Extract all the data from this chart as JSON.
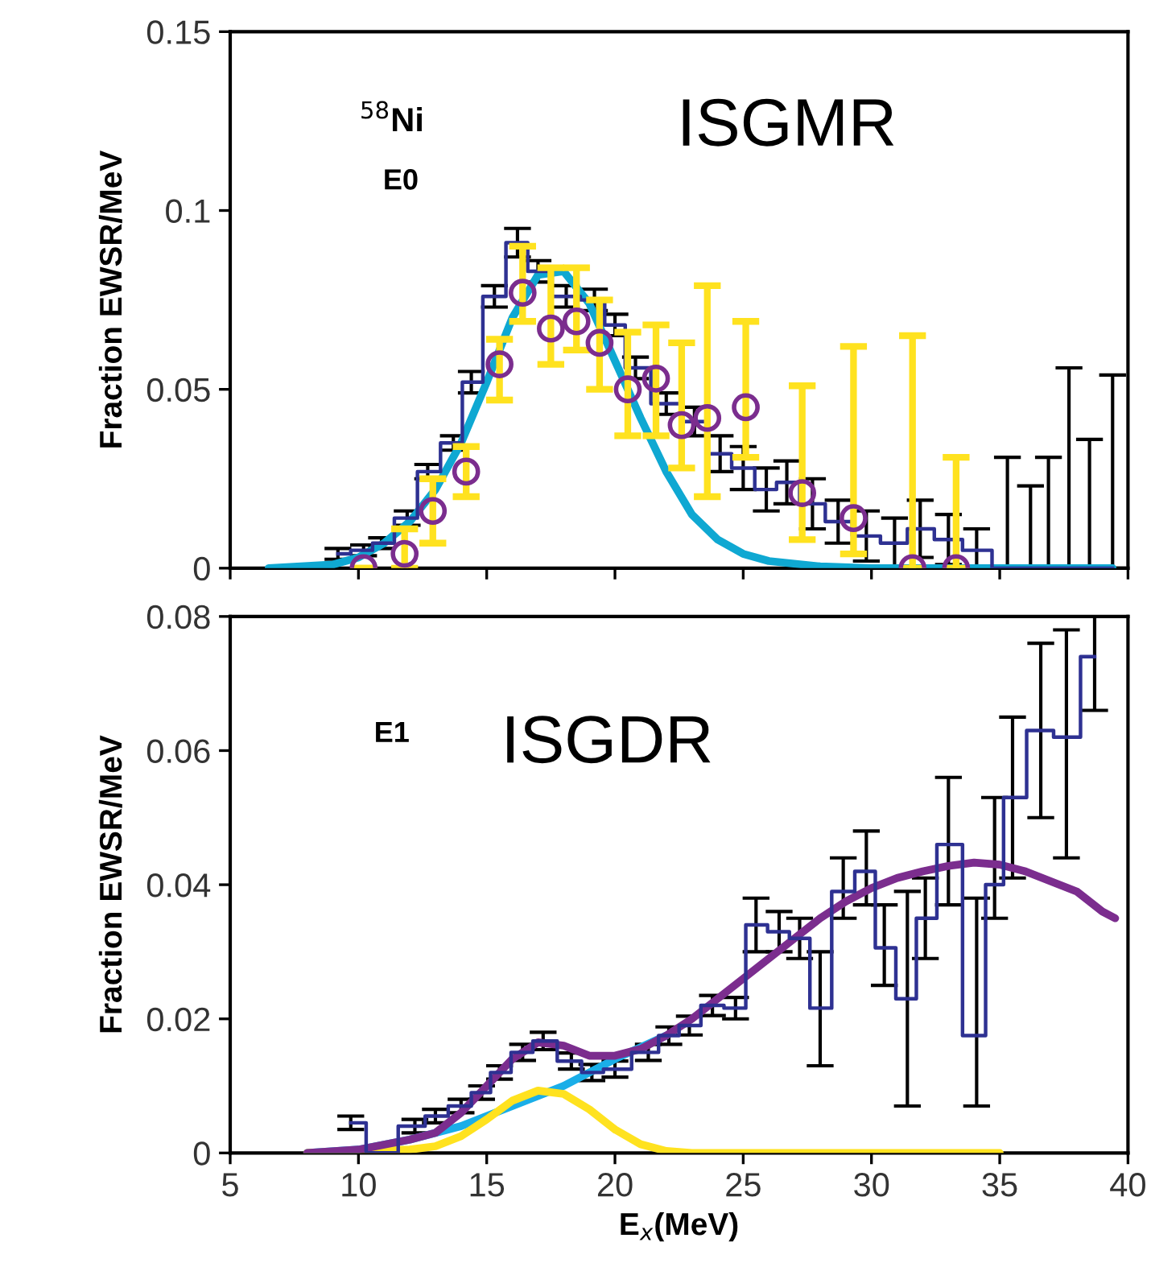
{
  "chart_data": [
    {
      "type": "step",
      "ylabel": "Fraction EWSR/MeV",
      "xlim": [
        5,
        40
      ],
      "ylim": [
        0,
        0.15
      ],
      "xticks": [
        5,
        10,
        15,
        20,
        25,
        30,
        35,
        40
      ],
      "yticks": [
        0,
        {
          "value": 0.05,
          "label": "0.05"
        },
        {
          "value": 0.1,
          "label": "0.1"
        },
        {
          "value": 0.15,
          "label": "0.15"
        }
      ],
      "tick_labels": "y",
      "grid": false,
      "legend": false,
      "annotations": [
        "$^{58}$Ni",
        "E0",
        "ISGMR"
      ],
      "series": [
        {
          "color": "#2e3192",
          "x": [
            9.2,
            10.2,
            10.9,
            11.9,
            12.7,
            13.7,
            14.4,
            15.3,
            16.2,
            17.0,
            18.1,
            19.2,
            20.0,
            20.8,
            22.0,
            23.1,
            24.1,
            25.0,
            25.9,
            26.7,
            27.7,
            28.7,
            29.8,
            30.9,
            31.9,
            33.0,
            34.1,
            35.3,
            36.2,
            36.9,
            37.7,
            38.5,
            39.4
          ],
          "values": [
            0.004,
            0.005,
            0.007,
            0.014,
            0.027,
            0.035,
            0.052,
            0.076,
            0.091,
            0.083,
            0.076,
            0.075,
            0.068,
            0.056,
            0.046,
            0.041,
            0.032,
            0.028,
            0.022,
            0.024,
            0.018,
            0.013,
            0.009,
            0.007,
            0.011,
            0.008,
            0.005,
            0,
            0,
            0,
            0,
            0,
            0
          ],
          "errors": [
            0.0015,
            0.0015,
            0.0015,
            0.002,
            0.002,
            0.002,
            0.003,
            0.003,
            0.004,
            0.003,
            0.003,
            0.003,
            0.003,
            0.003,
            0.003,
            0.004,
            0.005,
            0.006,
            0.006,
            0.006,
            0.007,
            0.006,
            0.007,
            0.007,
            0.008,
            0.007,
            0.006,
            [
              0,
              0.031
            ],
            [
              0,
              0.023
            ],
            [
              0,
              0.031
            ],
            [
              0,
              0.056
            ],
            [
              0,
              0.036
            ],
            [
              0,
              0.054
            ]
          ]
        },
        {
          "type": "line",
          "color": "#0fa8d2",
          "x": [
            6.5,
            9,
            10,
            11,
            12,
            13,
            14,
            15,
            16,
            17,
            18,
            19,
            20,
            21,
            22,
            23,
            24,
            25,
            26,
            28,
            30,
            39.4
          ],
          "values": [
            0,
            0.001,
            0.003,
            0.007,
            0.013,
            0.022,
            0.035,
            0.052,
            0.07,
            0.082,
            0.083,
            0.074,
            0.058,
            0.042,
            0.027,
            0.015,
            0.008,
            0.004,
            0.002,
            0.0005,
            0,
            0
          ]
        },
        {
          "type": "scatter",
          "marker": "circle",
          "color": "#7b2d8e",
          "x": [
            10.2,
            11.8,
            12.9,
            14.2,
            15.5,
            16.4,
            17.5,
            18.5,
            19.4,
            20.5,
            21.6,
            22.6,
            23.6,
            25.1,
            27.3,
            29.3,
            31.6,
            33.3
          ],
          "values": [
            0,
            0.004,
            0.016,
            0.027,
            0.057,
            0.077,
            0.067,
            0.069,
            0.063,
            0.05,
            0.053,
            0.04,
            0.042,
            0.045,
            0.021,
            0.014,
            0,
            0
          ],
          "errors": [
            null,
            [
              0,
              0.011
            ],
            [
              0.007,
              0.025
            ],
            [
              0.02,
              0.034
            ],
            [
              0.047,
              0.064
            ],
            [
              0.069,
              0.09
            ],
            [
              0.057,
              0.084
            ],
            [
              0.061,
              0.084
            ],
            [
              0.05,
              0.075
            ],
            [
              0.037,
              0.066
            ],
            [
              0.037,
              0.068
            ],
            [
              0.028,
              0.063
            ],
            [
              0.02,
              0.079
            ],
            [
              0.031,
              0.069
            ],
            [
              0.008,
              0.051
            ],
            [
              0.004,
              0.062
            ],
            [
              0,
              0.065
            ],
            [
              0,
              0.031
            ]
          ]
        }
      ]
    },
    {
      "type": "step",
      "ylabel": "Fraction EWSR/MeV",
      "xlabel": "E$_{x}$(MeV)",
      "xlim": [
        5,
        40
      ],
      "ylim": [
        0,
        0.08
      ],
      "xticks": [
        5,
        10,
        15,
        20,
        25,
        30,
        35,
        40
      ],
      "yticks": [
        0,
        {
          "value": 0.02,
          "label": "0.02"
        },
        {
          "value": 0.04,
          "label": "0.04"
        },
        {
          "value": 0.06,
          "label": "0.06"
        },
        {
          "value": 0.08,
          "label": "0.08"
        }
      ],
      "grid": false,
      "legend": false,
      "annotations": [
        "E1",
        "ISGDR"
      ],
      "series": [
        {
          "color": "#2e3192",
          "x": [
            9.7,
            10.9,
            12.2,
            13.0,
            14.0,
            14.8,
            15.5,
            16.4,
            17.2,
            18.3,
            19.1,
            20.0,
            21.3,
            22.1,
            22.9,
            23.8,
            24.7,
            25.5,
            26.4,
            27.2,
            28.0,
            28.9,
            29.8,
            30.5,
            31.4,
            32.1,
            33.0,
            34.1,
            34.8,
            35.5,
            36.6,
            37.6,
            38.7
          ],
          "values": [
            0.0045,
            0,
            0.004,
            0.0055,
            0.007,
            0.009,
            0.012,
            0.015,
            0.0167,
            0.0137,
            0.012,
            0.0125,
            0.015,
            0.0175,
            0.019,
            0.022,
            0.0216,
            0.034,
            0.033,
            0.032,
            0.0216,
            0.039,
            0.042,
            0.0306,
            0.023,
            0.035,
            0.046,
            0.0175,
            0.04,
            0.053,
            0.063,
            0.062,
            0.074
          ],
          "errors": [
            0.001,
            null,
            0.001,
            0.001,
            0.001,
            0.001,
            0.001,
            0.0012,
            0.0013,
            0.0012,
            0.0012,
            0.0012,
            0.0012,
            0.0013,
            0.0014,
            0.0015,
            0.0016,
            0.004,
            0.003,
            0.003,
            [
              0.013,
              0.03
            ],
            [
              0.035,
              0.044
            ],
            [
              0.037,
              0.048
            ],
            [
              0.025,
              0.037
            ],
            [
              0.007,
              0.039
            ],
            [
              0.029,
              0.041
            ],
            [
              0.037,
              0.056
            ],
            [
              0.007,
              0.038
            ],
            [
              0.035,
              0.053
            ],
            [
              0.041,
              0.065
            ],
            [
              0.05,
              0.076
            ],
            [
              0.044,
              0.078
            ],
            [
              0.066,
              0.08
            ]
          ]
        },
        {
          "type": "line",
          "color": "#1aaee8",
          "x": [
            8,
            10,
            12,
            14,
            16,
            18,
            20,
            22
          ],
          "values": [
            0,
            0.0005,
            0.002,
            0.004,
            0.007,
            0.01,
            0.014,
            0.0175
          ]
        },
        {
          "type": "line",
          "color": "#ffe21f",
          "x": [
            8,
            12,
            13,
            14,
            15,
            16,
            17,
            18,
            19,
            20,
            21,
            22,
            23,
            35
          ],
          "values": [
            0,
            0.0005,
            0.001,
            0.0025,
            0.005,
            0.0078,
            0.0093,
            0.0088,
            0.0065,
            0.0035,
            0.0013,
            0.0003,
            0,
            0
          ]
        },
        {
          "type": "line",
          "color": "#7b2d8e",
          "x": [
            8,
            10,
            12,
            13,
            14,
            15,
            16,
            17,
            18,
            19,
            20,
            21,
            22,
            23,
            24,
            25,
            26,
            27,
            28,
            29,
            30,
            31,
            32,
            33,
            34,
            35,
            36,
            37,
            38,
            39,
            39.5
          ],
          "values": [
            0,
            0.0005,
            0.002,
            0.003,
            0.006,
            0.01,
            0.014,
            0.0165,
            0.016,
            0.0145,
            0.0145,
            0.0155,
            0.0175,
            0.02,
            0.023,
            0.026,
            0.029,
            0.032,
            0.035,
            0.0375,
            0.0395,
            0.041,
            0.042,
            0.0428,
            0.0433,
            0.043,
            0.042,
            0.0405,
            0.039,
            0.036,
            0.035
          ]
        }
      ]
    }
  ]
}
